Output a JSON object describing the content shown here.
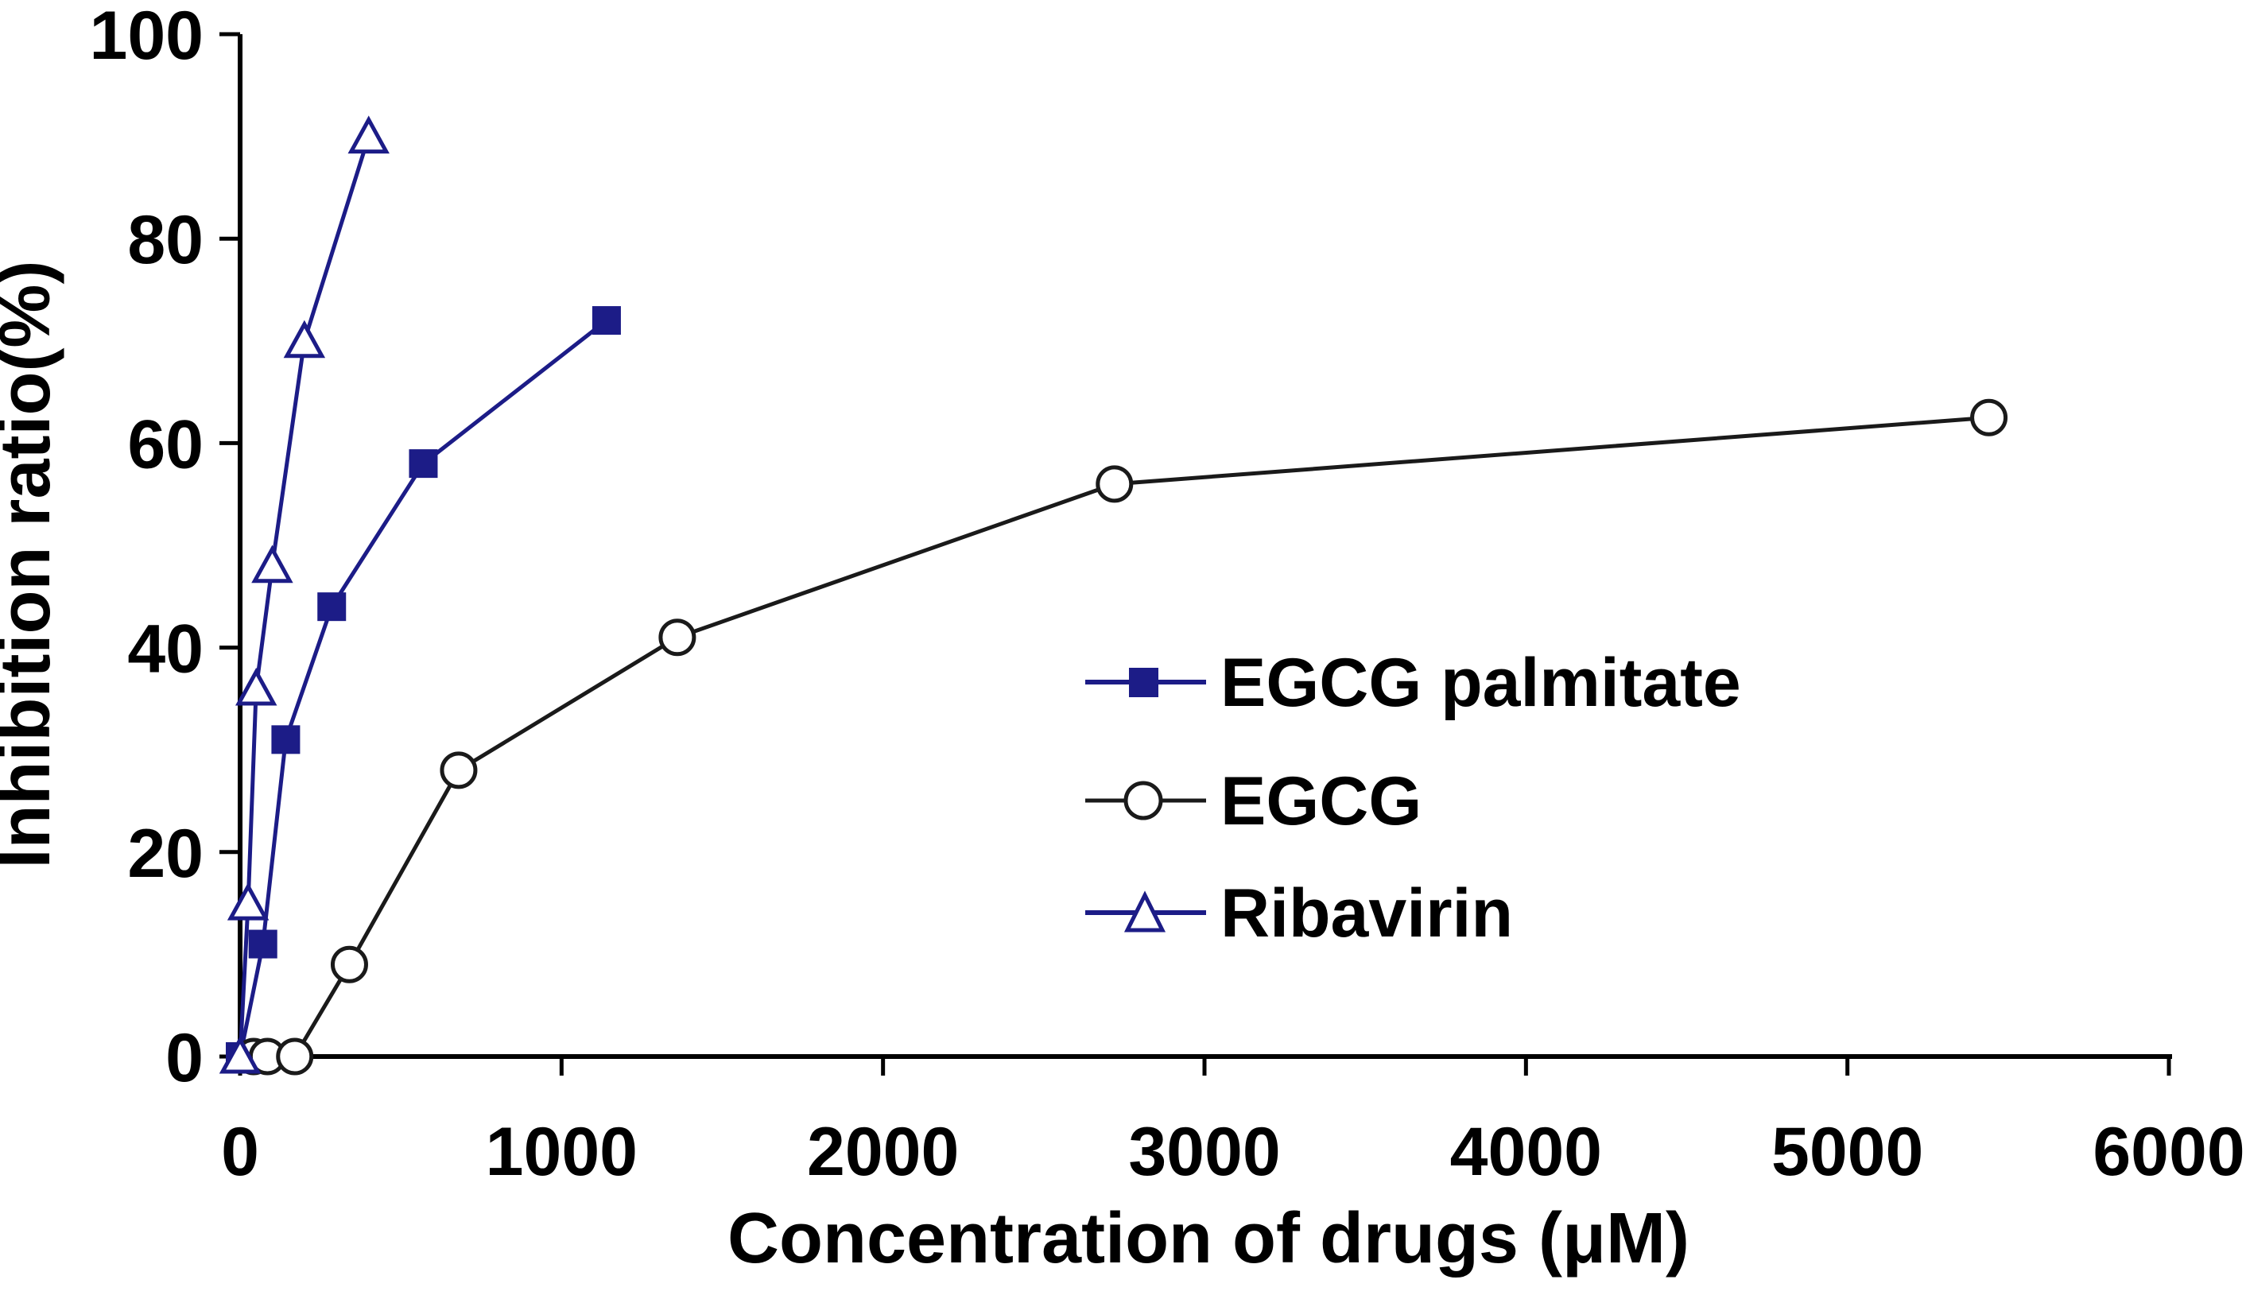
{
  "chart_data": {
    "type": "line",
    "title": "",
    "xlabel": "Concentration of drugs (μM)",
    "ylabel": "Inhibition ratio(%)",
    "xlim": [
      0,
      6000
    ],
    "ylim": [
      0,
      100
    ],
    "x_ticks": [
      "0",
      "1000",
      "2000",
      "3000",
      "4000",
      "5000",
      "6000"
    ],
    "x_tick_values": [
      0,
      1000,
      2000,
      3000,
      4000,
      5000,
      6000
    ],
    "y_ticks": [
      "0",
      "20",
      "40",
      "60",
      "80",
      "100"
    ],
    "y_tick_values": [
      0,
      20,
      40,
      60,
      80,
      100
    ],
    "grid": false,
    "legend_position": "center-right",
    "axis_color": "#000000",
    "background_color": "#ffffff",
    "series": [
      {
        "name": "EGCG palmitate",
        "color": "#1c1c87",
        "marker": "filled-square",
        "marker_fill": "#1c1c87",
        "points": [
          [
            0,
            0
          ],
          [
            71,
            11
          ],
          [
            142,
            31
          ],
          [
            285,
            44
          ],
          [
            570,
            58
          ],
          [
            1140,
            72
          ]
        ]
      },
      {
        "name": "EGCG",
        "color": "#1a1a1a",
        "marker": "open-circle",
        "marker_fill": "#ffffff",
        "points": [
          [
            42,
            0
          ],
          [
            85,
            0
          ],
          [
            170,
            0
          ],
          [
            340,
            9
          ],
          [
            680,
            28
          ],
          [
            1360,
            41
          ],
          [
            2720,
            56
          ],
          [
            5440,
            62.5
          ]
        ]
      },
      {
        "name": "Ribavirin",
        "color": "#1c1c87",
        "marker": "open-triangle",
        "marker_fill": "#ffffff",
        "points": [
          [
            0,
            0
          ],
          [
            25,
            15
          ],
          [
            50,
            36
          ],
          [
            100,
            48
          ],
          [
            200,
            70
          ],
          [
            400,
            90
          ]
        ]
      }
    ]
  }
}
